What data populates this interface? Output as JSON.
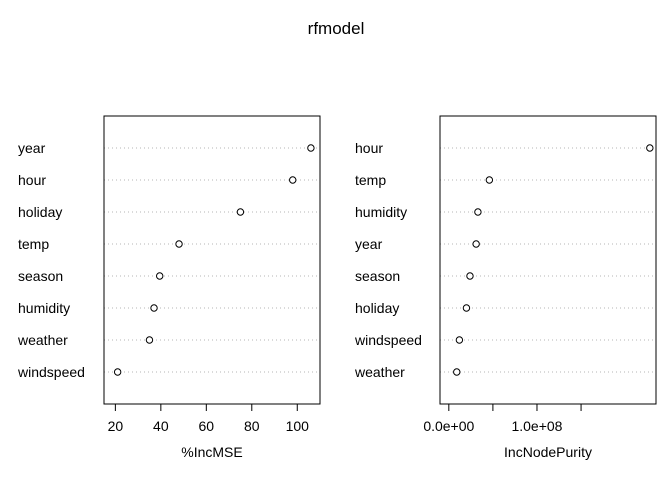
{
  "title": "rfmodel",
  "chart_data": [
    {
      "type": "scatter",
      "xlabel": "%IncMSE",
      "xlim": [
        15,
        110
      ],
      "xticks": [
        20,
        40,
        60,
        80,
        100
      ],
      "tick_labels": [
        "20",
        "40",
        "60",
        "80",
        "100"
      ],
      "categories": [
        "year",
        "hour",
        "holiday",
        "temp",
        "season",
        "humidity",
        "weather",
        "windspeed"
      ],
      "values": [
        106,
        98,
        75,
        48,
        39.5,
        37,
        35,
        21
      ],
      "grid": "dotted horizontal"
    },
    {
      "type": "scatter",
      "xlabel": "IncNodePurity",
      "xlim": [
        -10000000,
        235000000
      ],
      "xticks": [
        0,
        50000000,
        100000000,
        150000000
      ],
      "tick_labels": [
        "0.0e+00",
        "",
        "1.0e+08",
        ""
      ],
      "categories": [
        "hour",
        "temp",
        "humidity",
        "year",
        "season",
        "holiday",
        "windspeed",
        "weather"
      ],
      "values": [
        228000000,
        46000000,
        33000000,
        31000000,
        24000000,
        20000000,
        12000000,
        9000000
      ],
      "grid": "dotted horizontal"
    }
  ]
}
